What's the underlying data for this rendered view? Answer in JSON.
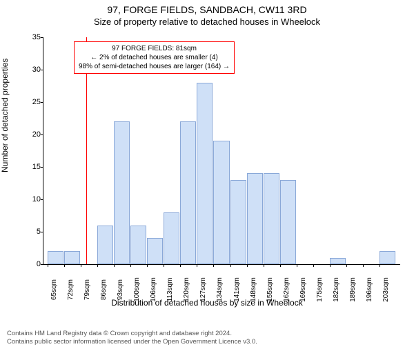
{
  "title_line1": "97, FORGE FIELDS, SANDBACH, CW11 3RD",
  "title_line2": "Size of property relative to detached houses in Wheelock",
  "ylabel": "Number of detached properties",
  "xlabel": "Distribution of detached houses by size in Wheelock",
  "chart": {
    "type": "histogram",
    "ylim": [
      0,
      35
    ],
    "ytick_step": 5,
    "bar_fill": "#cfe0f7",
    "bar_stroke": "#8aa8d8",
    "bar_stroke_width": 0.5,
    "background_color": "#ffffff",
    "axis_color": "#000000",
    "bins": [
      {
        "label": "65sqm",
        "x": 65,
        "value": 2
      },
      {
        "label": "72sqm",
        "x": 72,
        "value": 2
      },
      {
        "label": "79sqm",
        "x": 79,
        "value": 0
      },
      {
        "label": "86sqm",
        "x": 86,
        "value": 6
      },
      {
        "label": "93sqm",
        "x": 93,
        "value": 22
      },
      {
        "label": "100sqm",
        "x": 100,
        "value": 6
      },
      {
        "label": "106sqm",
        "x": 106,
        "value": 4
      },
      {
        "label": "113sqm",
        "x": 113,
        "value": 8
      },
      {
        "label": "120sqm",
        "x": 120,
        "value": 22
      },
      {
        "label": "127sqm",
        "x": 127,
        "value": 28
      },
      {
        "label": "134sqm",
        "x": 134,
        "value": 19
      },
      {
        "label": "141sqm",
        "x": 141,
        "value": 13
      },
      {
        "label": "148sqm",
        "x": 148,
        "value": 14
      },
      {
        "label": "155sqm",
        "x": 155,
        "value": 14
      },
      {
        "label": "162sqm",
        "x": 162,
        "value": 13
      },
      {
        "label": "169sqm",
        "x": 169,
        "value": 0
      },
      {
        "label": "175sqm",
        "x": 175,
        "value": 0
      },
      {
        "label": "182sqm",
        "x": 182,
        "value": 1
      },
      {
        "label": "189sqm",
        "x": 189,
        "value": 0
      },
      {
        "label": "196sqm",
        "x": 196,
        "value": 0
      },
      {
        "label": "203sqm",
        "x": 203,
        "value": 2
      }
    ],
    "marker": {
      "x": 81,
      "color": "#ff0000",
      "width": 1
    },
    "annotation": {
      "border_color": "#ff0000",
      "border_width": 1,
      "bg": "#ffffff",
      "line1": "97 FORGE FIELDS: 81sqm",
      "line2": "← 2% of detached houses are smaller (4)",
      "line3": "98% of semi-detached houses are larger (164) →"
    }
  },
  "footer_line1": "Contains HM Land Registry data © Crown copyright and database right 2024.",
  "footer_line2": "Contains public sector information licensed under the Open Government Licence v3.0."
}
